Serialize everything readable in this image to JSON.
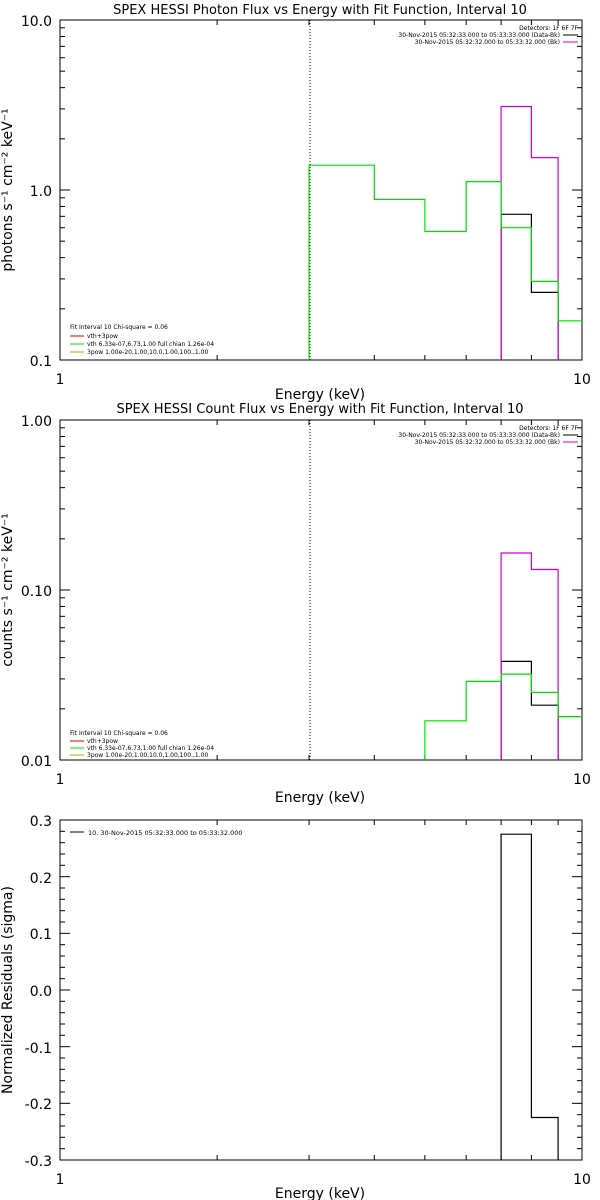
{
  "colors": {
    "black": "#000000",
    "green": "#00dd00",
    "magenta": "#cc00cc",
    "red": "#dd0000",
    "orange": "#dd9900"
  },
  "chart_data": [
    {
      "type": "line",
      "title": "SPEX HESSI Photon Flux vs Energy with Fit Function, Interval 10",
      "xlabel": "Energy (keV)",
      "ylabel": "photons s⁻¹ cm⁻² keV⁻¹",
      "xscale": "log",
      "yscale": "log",
      "xlim": [
        1,
        10
      ],
      "ylim": [
        0.1,
        10
      ],
      "xticks": [
        "1",
        "10"
      ],
      "yticks": [
        "10.0",
        "1.0",
        "0.1"
      ],
      "threshold_line_x": 3,
      "legend_top_right": [
        {
          "text": "Detectors: 1F 6F 7F",
          "color": "#000000"
        },
        {
          "text": "30-Nov-2015 05:32:33.000 to 05:33:33.000 (Data-Bk)",
          "color": "#000000"
        },
        {
          "text": "30-Nov-2015 05:32:32.000 to 05:33:32.000 (Bk)",
          "color": "#cc00cc"
        }
      ],
      "legend_bottom_left": [
        {
          "text": "Fit Interval 10   Chi-square = 0.06",
          "color": "#000000"
        },
        {
          "text": "vth+3pow",
          "color": "#dd0000"
        },
        {
          "text": "vth 6.33e-07,6.73,1.00  full chian 1.26e-04",
          "color": "#00dd00"
        },
        {
          "text": "3pow 1.00e-20,1.00,10.0,1.00,100.,1.00",
          "color": "#dd9900"
        }
      ],
      "series": [
        {
          "name": "Data-Bk",
          "color": "#000000",
          "bins": [
            [
              7,
              8,
              0.72
            ],
            [
              8,
              9,
              0.25
            ]
          ]
        },
        {
          "name": "Bk",
          "color": "#cc00cc",
          "bins": [
            [
              7,
              8,
              3.1
            ],
            [
              8,
              9,
              1.55
            ]
          ]
        },
        {
          "name": "vth",
          "color": "#00dd00",
          "bins": [
            [
              3,
              4,
              1.4
            ],
            [
              4,
              5,
              0.88
            ],
            [
              5,
              6,
              0.57
            ],
            [
              6,
              7,
              1.12
            ],
            [
              7,
              8,
              0.6
            ],
            [
              8,
              9,
              0.29
            ],
            [
              9,
              10,
              0.17
            ]
          ]
        }
      ]
    },
    {
      "type": "line",
      "title": "SPEX HESSI Count Flux vs Energy with Fit Function, Interval 10",
      "xlabel": "Energy (keV)",
      "ylabel": "counts s⁻¹ cm⁻² keV⁻¹",
      "xscale": "log",
      "yscale": "log",
      "xlim": [
        1,
        10
      ],
      "ylim": [
        0.01,
        1
      ],
      "xticks": [
        "1",
        "10"
      ],
      "yticks": [
        "1.00",
        "0.10",
        "0.01"
      ],
      "threshold_line_x": 3,
      "legend_top_right": [
        {
          "text": "Detectors: 1F 6F 7F",
          "color": "#000000"
        },
        {
          "text": "30-Nov-2015 05:32:33.000 to 05:33:33.000 (Data-Bk)",
          "color": "#000000"
        },
        {
          "text": "30-Nov-2015 05:32:32.000 to 05:33:32.000 (Bk)",
          "color": "#cc00cc"
        }
      ],
      "legend_bottom_left": [
        {
          "text": "Fit Interval 10   Chi-square = 0.06",
          "color": "#000000"
        },
        {
          "text": "vth+3pow",
          "color": "#dd0000"
        },
        {
          "text": "vth 6.33e-07,6.73,1.00  full chian 1.26e-04",
          "color": "#00dd00"
        },
        {
          "text": "3pow 1.00e-20,1.00,10.0,1.00,100.,1.00",
          "color": "#dd9900"
        }
      ],
      "series": [
        {
          "name": "Data-Bk",
          "color": "#000000",
          "bins": [
            [
              7,
              8,
              0.038
            ],
            [
              8,
              9,
              0.021
            ]
          ]
        },
        {
          "name": "Bk",
          "color": "#cc00cc",
          "bins": [
            [
              7,
              8,
              0.165
            ],
            [
              8,
              9,
              0.132
            ]
          ]
        },
        {
          "name": "vth",
          "color": "#00dd00",
          "bins": [
            [
              5,
              6,
              0.017
            ],
            [
              6,
              7,
              0.029
            ],
            [
              7,
              8,
              0.032
            ],
            [
              8,
              9,
              0.025
            ],
            [
              9,
              10,
              0.018
            ]
          ]
        }
      ]
    },
    {
      "type": "line",
      "title": "",
      "xlabel": "Energy (keV)",
      "ylabel": "Normalized Residuals (sigma)",
      "xscale": "log",
      "yscale": "linear",
      "xlim": [
        1,
        10
      ],
      "ylim": [
        -0.3,
        0.3
      ],
      "xticks": [
        "1",
        "10"
      ],
      "yticks": [
        "0.3",
        "0.2",
        "0.1",
        "0.0",
        "-0.1",
        "-0.2",
        "-0.3"
      ],
      "legend_top_left": [
        {
          "text": "10. 30-Nov-2015 05:32:33.000 to 05:33:32.000",
          "color": "#000000"
        }
      ],
      "series": [
        {
          "name": "10. 30-Nov-2015 05:32:33.000 to 05:33:32.000",
          "color": "#000000",
          "bins": [
            [
              7,
              8,
              0.275
            ],
            [
              8,
              9,
              -0.225
            ]
          ]
        }
      ]
    }
  ]
}
